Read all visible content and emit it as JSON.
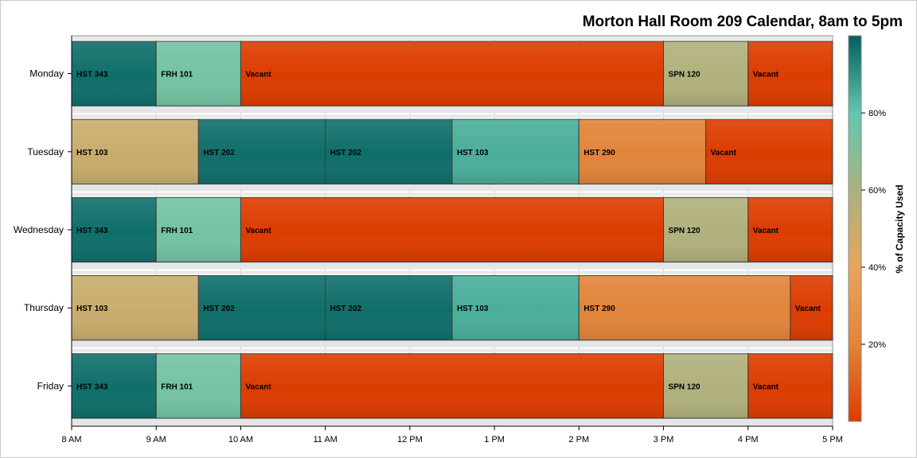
{
  "chart_data": {
    "type": "bar",
    "orientation": "horizontal",
    "stacked": true,
    "title": "Morton Hall Room 209 Calendar, 8am to 5pm",
    "xlabel": "",
    "ylabel": "",
    "x_range_hours": [
      8,
      17
    ],
    "x_tick_labels": [
      "8 AM",
      "9 AM",
      "10 AM",
      "11 AM",
      "12 PM",
      "1 PM",
      "2 PM",
      "3 PM",
      "4 PM",
      "5 PM"
    ],
    "legend_placement": "right",
    "color_scale": {
      "title": "% of Capacity Used",
      "range": [
        0,
        100
      ],
      "stops": [
        "#dc3c00",
        "#e2843a",
        "#e8a55a",
        "#aab280",
        "#62c8ae",
        "#005e5e"
      ],
      "tick_labels": [
        "20%",
        "40%",
        "60%",
        "80%"
      ],
      "tick_values": [
        20,
        40,
        60,
        80
      ]
    },
    "days": [
      {
        "day": "Monday",
        "blocks": [
          {
            "course": "HST 343",
            "start": 8,
            "end": 9,
            "capacity_pct": 97
          },
          {
            "course": "FRH 101",
            "start": 9,
            "end": 10,
            "capacity_pct": 75
          },
          {
            "course": "Vacant",
            "start": 10,
            "end": 15,
            "capacity_pct": 0
          },
          {
            "course": "SPN 120",
            "start": 15,
            "end": 16,
            "capacity_pct": 58
          },
          {
            "course": "Vacant",
            "start": 16,
            "end": 17,
            "capacity_pct": 0
          }
        ]
      },
      {
        "day": "Tuesday",
        "blocks": [
          {
            "course": "HST 103",
            "start": 8,
            "end": 9.5,
            "capacity_pct": 50
          },
          {
            "course": "HST 202",
            "start": 9.5,
            "end": 11,
            "capacity_pct": 97
          },
          {
            "course": "HST 202",
            "start": 11,
            "end": 12.5,
            "capacity_pct": 97
          },
          {
            "course": "HST 103",
            "start": 12.5,
            "end": 14,
            "capacity_pct": 85
          },
          {
            "course": "HST 290",
            "start": 14,
            "end": 15.5,
            "capacity_pct": 20
          },
          {
            "course": "Vacant",
            "start": 15.5,
            "end": 17,
            "capacity_pct": 0
          }
        ]
      },
      {
        "day": "Wednesday",
        "blocks": [
          {
            "course": "HST 343",
            "start": 8,
            "end": 9,
            "capacity_pct": 97
          },
          {
            "course": "FRH 101",
            "start": 9,
            "end": 10,
            "capacity_pct": 75
          },
          {
            "course": "Vacant",
            "start": 10,
            "end": 15,
            "capacity_pct": 0
          },
          {
            "course": "SPN 120",
            "start": 15,
            "end": 16,
            "capacity_pct": 58
          },
          {
            "course": "Vacant",
            "start": 16,
            "end": 17,
            "capacity_pct": 0
          }
        ]
      },
      {
        "day": "Thursday",
        "blocks": [
          {
            "course": "HST 103",
            "start": 8,
            "end": 9.5,
            "capacity_pct": 50
          },
          {
            "course": "HST 202",
            "start": 9.5,
            "end": 11,
            "capacity_pct": 97
          },
          {
            "course": "HST 202",
            "start": 11,
            "end": 12.5,
            "capacity_pct": 97
          },
          {
            "course": "HST 103",
            "start": 12.5,
            "end": 14,
            "capacity_pct": 85
          },
          {
            "course": "HST 290",
            "start": 14,
            "end": 16.5,
            "capacity_pct": 20
          },
          {
            "course": "Vacant",
            "start": 16.5,
            "end": 17,
            "capacity_pct": 0
          }
        ]
      },
      {
        "day": "Friday",
        "blocks": [
          {
            "course": "HST 343",
            "start": 8,
            "end": 9,
            "capacity_pct": 97
          },
          {
            "course": "FRH 101",
            "start": 9,
            "end": 10,
            "capacity_pct": 75
          },
          {
            "course": "Vacant",
            "start": 10,
            "end": 15,
            "capacity_pct": 0
          },
          {
            "course": "SPN 120",
            "start": 15,
            "end": 16,
            "capacity_pct": 58
          },
          {
            "course": "Vacant",
            "start": 16,
            "end": 17,
            "capacity_pct": 0
          }
        ]
      }
    ]
  }
}
